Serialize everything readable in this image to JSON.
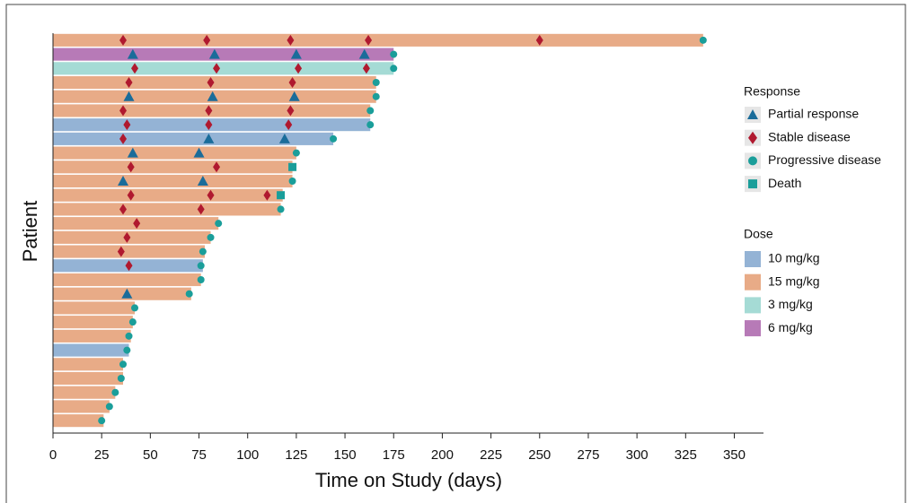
{
  "chart_data": {
    "type": "swimmer",
    "x_label": "Time on Study (days)",
    "y_label": "Patient",
    "xlim": [
      0,
      365
    ],
    "xticks": [
      0,
      25,
      50,
      75,
      100,
      125,
      150,
      175,
      200,
      225,
      250,
      275,
      300,
      325,
      350
    ],
    "categories": [
      null,
      null,
      null,
      null,
      null,
      null,
      null,
      null,
      null,
      null,
      null,
      null,
      null,
      null,
      null,
      null,
      null,
      null,
      null,
      null,
      null,
      null,
      null,
      null,
      null,
      null,
      null,
      null
    ],
    "durations": [
      334,
      175,
      175,
      166,
      166,
      163,
      163,
      144,
      125,
      123,
      123,
      118,
      117,
      85,
      81,
      78,
      77,
      76,
      71,
      42,
      41,
      40,
      39,
      36,
      36,
      32,
      29,
      26
    ],
    "bar_dose": [
      "15 mg/kg",
      "6 mg/kg",
      "3 mg/kg",
      "15 mg/kg",
      "15 mg/kg",
      "15 mg/kg",
      "10 mg/kg",
      "10 mg/kg",
      "15 mg/kg",
      "15 mg/kg",
      "15 mg/kg",
      "15 mg/kg",
      "15 mg/kg",
      "15 mg/kg",
      "15 mg/kg",
      "15 mg/kg",
      "10 mg/kg",
      "15 mg/kg",
      "15 mg/kg",
      "15 mg/kg",
      "15 mg/kg",
      "15 mg/kg",
      "10 mg/kg",
      "15 mg/kg",
      "15 mg/kg",
      "15 mg/kg",
      "15 mg/kg",
      "15 mg/kg"
    ],
    "dose_title": "Dose",
    "doses": [
      {
        "name": "10 mg/kg",
        "color": "#94b3d5"
      },
      {
        "name": "15 mg/kg",
        "color": "#e8ab87"
      },
      {
        "name": "3 mg/kg",
        "color": "#a5dbd5"
      },
      {
        "name": "6 mg/kg",
        "color": "#b77ab7"
      }
    ],
    "response_title": "Response",
    "series": [
      {
        "name": "Partial response",
        "shape": "triangle",
        "color": "#1a6c9a",
        "category": [
          1,
          1,
          1,
          1,
          4,
          4,
          4,
          7,
          7,
          8,
          8,
          10,
          10,
          18
        ],
        "x": [
          41,
          83,
          125,
          160,
          39,
          82,
          124,
          80,
          119,
          41,
          75,
          36,
          77,
          38
        ]
      },
      {
        "name": "Stable disease",
        "shape": "diamond",
        "color": "#b0192f",
        "category": [
          0,
          0,
          0,
          0,
          0,
          2,
          2,
          2,
          2,
          3,
          3,
          3,
          5,
          5,
          5,
          6,
          6,
          6,
          7,
          9,
          9,
          11,
          11,
          11,
          12,
          12,
          13,
          14,
          15,
          16
        ],
        "x": [
          36,
          79,
          122,
          162,
          250,
          42,
          84,
          126,
          161,
          39,
          81,
          123,
          36,
          80,
          122,
          38,
          80,
          121,
          36,
          40,
          84,
          40,
          81,
          110,
          36,
          76,
          43,
          38,
          35,
          39
        ]
      },
      {
        "name": "Progressive disease",
        "shape": "circle",
        "color": "#1a9e9a",
        "category": [
          0,
          1,
          2,
          3,
          4,
          5,
          6,
          7,
          8,
          10,
          12,
          13,
          14,
          15,
          16,
          17,
          18,
          19,
          20,
          21,
          22,
          23,
          24,
          25,
          26,
          27
        ],
        "x": [
          334,
          175,
          175,
          166,
          166,
          163,
          163,
          144,
          125,
          123,
          117,
          85,
          81,
          77,
          76,
          76,
          70,
          42,
          41,
          39,
          38,
          36,
          35,
          32,
          29,
          25
        ]
      },
      {
        "name": "Death",
        "shape": "square",
        "color": "#1a9e9a",
        "category": [
          9,
          11
        ],
        "x": [
          123,
          117
        ]
      }
    ]
  }
}
